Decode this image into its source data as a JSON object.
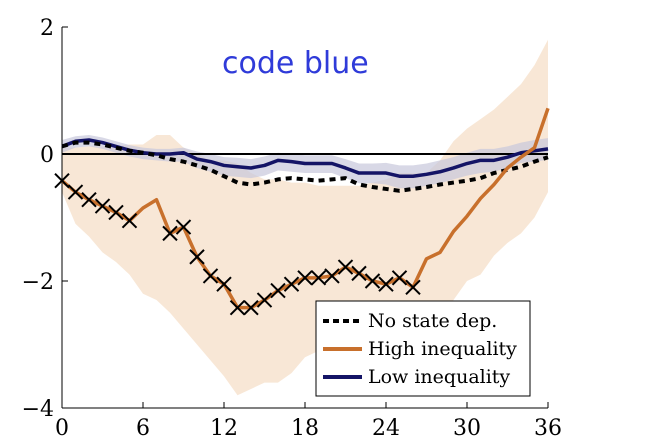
{
  "chart_data": {
    "type": "line",
    "title": "",
    "xlabel": "",
    "ylabel": "",
    "xlim": [
      0,
      36
    ],
    "ylim": [
      -4,
      2
    ],
    "xticks": [
      0,
      6,
      12,
      18,
      24,
      30,
      36
    ],
    "yticks": [
      -4,
      -2,
      0,
      2
    ],
    "xtick_labels": [
      "0",
      "6",
      "12",
      "18",
      "24",
      "30",
      "36"
    ],
    "ytick_labels": [
      "−4",
      "−2",
      "0",
      "2"
    ],
    "zero_line": true,
    "annotation": "code blue",
    "legend_position": "bottom-right",
    "series": [
      {
        "name": "No state dep.",
        "style": "dashed",
        "color": "#000000",
        "x": [
          0,
          1,
          2,
          3,
          4,
          5,
          6,
          7,
          8,
          9,
          10,
          11,
          12,
          13,
          14,
          15,
          16,
          17,
          18,
          19,
          20,
          21,
          22,
          23,
          24,
          25,
          26,
          27,
          28,
          29,
          30,
          31,
          32,
          33,
          34,
          35,
          36
        ],
        "values": [
          0.12,
          0.18,
          0.18,
          0.15,
          0.1,
          0.05,
          0.02,
          -0.02,
          -0.08,
          -0.12,
          -0.18,
          -0.25,
          -0.35,
          -0.45,
          -0.48,
          -0.45,
          -0.4,
          -0.38,
          -0.4,
          -0.42,
          -0.4,
          -0.38,
          -0.48,
          -0.52,
          -0.55,
          -0.58,
          -0.55,
          -0.52,
          -0.48,
          -0.45,
          -0.42,
          -0.38,
          -0.3,
          -0.25,
          -0.2,
          -0.12,
          -0.05
        ]
      },
      {
        "name": "High inequality",
        "style": "solid",
        "color": "#c8702c",
        "marker": "x",
        "marker_indices": [
          0,
          1,
          2,
          3,
          4,
          5,
          8,
          9,
          10,
          11,
          12,
          13,
          14,
          15,
          16,
          17,
          18,
          19,
          20,
          21,
          22,
          23,
          24,
          25,
          26
        ],
        "x": [
          0,
          1,
          2,
          3,
          4,
          5,
          6,
          7,
          8,
          9,
          10,
          11,
          12,
          13,
          14,
          15,
          16,
          17,
          18,
          19,
          20,
          21,
          22,
          23,
          24,
          25,
          26,
          27,
          28,
          29,
          30,
          31,
          32,
          33,
          34,
          35,
          36
        ],
        "values": [
          -0.42,
          -0.6,
          -0.72,
          -0.82,
          -0.92,
          -1.05,
          -0.85,
          -0.72,
          -1.25,
          -1.15,
          -1.62,
          -1.92,
          -2.05,
          -2.42,
          -2.42,
          -2.3,
          -2.15,
          -2.05,
          -1.95,
          -1.95,
          -1.92,
          -1.78,
          -1.88,
          -2.0,
          -2.05,
          -1.95,
          -2.1,
          -1.65,
          -1.55,
          -1.22,
          -0.98,
          -0.7,
          -0.48,
          -0.22,
          -0.05,
          0.1,
          0.72
        ]
      },
      {
        "name": "Low inequality",
        "style": "solid",
        "color": "#141466",
        "x": [
          0,
          1,
          2,
          3,
          4,
          5,
          6,
          7,
          8,
          9,
          10,
          11,
          12,
          13,
          14,
          15,
          16,
          17,
          18,
          19,
          20,
          21,
          22,
          23,
          24,
          25,
          26,
          27,
          28,
          29,
          30,
          31,
          32,
          33,
          34,
          35,
          36
        ],
        "values": [
          0.12,
          0.2,
          0.22,
          0.18,
          0.12,
          0.06,
          0.02,
          0.0,
          0.0,
          0.02,
          -0.08,
          -0.12,
          -0.18,
          -0.2,
          -0.22,
          -0.18,
          -0.1,
          -0.12,
          -0.15,
          -0.15,
          -0.15,
          -0.22,
          -0.3,
          -0.3,
          -0.3,
          -0.35,
          -0.35,
          -0.32,
          -0.28,
          -0.22,
          -0.15,
          -0.1,
          -0.1,
          -0.05,
          0.02,
          0.05,
          0.08
        ]
      }
    ],
    "bands": [
      {
        "series": "High inequality",
        "color": "#f7e4d2",
        "upper": [
          0.1,
          0.1,
          0.12,
          0.12,
          0.12,
          0.15,
          0.15,
          0.3,
          0.3,
          0.1,
          0.0,
          -0.1,
          -0.1,
          -0.15,
          -0.3,
          -0.4,
          -0.4,
          -0.45,
          -0.45,
          -0.5,
          -0.5,
          -0.5,
          -0.5,
          -0.45,
          -0.4,
          -0.3,
          -0.3,
          -0.3,
          -0.1,
          0.2,
          0.4,
          0.55,
          0.7,
          0.9,
          1.1,
          1.4,
          1.8
        ],
        "lower": [
          -0.6,
          -1.1,
          -1.3,
          -1.55,
          -1.7,
          -1.9,
          -2.2,
          -2.3,
          -2.5,
          -2.75,
          -3.0,
          -3.25,
          -3.5,
          -3.8,
          -3.7,
          -3.6,
          -3.6,
          -3.45,
          -3.2,
          -3.1,
          -3.1,
          -3.0,
          -3.1,
          -3.0,
          -3.0,
          -3.0,
          -3.2,
          -3.0,
          -2.8,
          -2.3,
          -2.0,
          -1.9,
          -1.6,
          -1.4,
          -1.25,
          -1.0,
          -0.6
        ]
      },
      {
        "series": "Low inequality",
        "color": "#c8c8dc",
        "upper": [
          0.22,
          0.28,
          0.3,
          0.26,
          0.2,
          0.14,
          0.1,
          0.08,
          0.08,
          0.1,
          0.04,
          0.0,
          -0.05,
          -0.06,
          -0.08,
          -0.04,
          0.02,
          0.0,
          -0.02,
          -0.02,
          -0.02,
          -0.08,
          -0.15,
          -0.15,
          -0.14,
          -0.18,
          -0.18,
          -0.15,
          -0.1,
          -0.05,
          0.02,
          0.08,
          0.08,
          0.12,
          0.18,
          0.22,
          0.25
        ],
        "lower": [
          0.02,
          0.1,
          0.12,
          0.08,
          0.02,
          -0.04,
          -0.08,
          -0.1,
          -0.12,
          -0.12,
          -0.22,
          -0.28,
          -0.34,
          -0.36,
          -0.38,
          -0.34,
          -0.26,
          -0.28,
          -0.3,
          -0.3,
          -0.3,
          -0.38,
          -0.46,
          -0.46,
          -0.48,
          -0.54,
          -0.54,
          -0.5,
          -0.46,
          -0.4,
          -0.34,
          -0.3,
          -0.28,
          -0.22,
          -0.14,
          -0.12,
          -0.09
        ]
      }
    ]
  }
}
